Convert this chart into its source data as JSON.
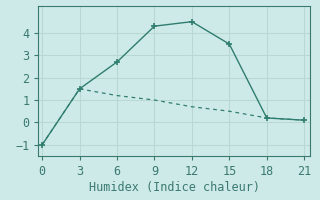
{
  "xlabel": "Humidex (Indice chaleur)",
  "bg_color": "#ceeae8",
  "line_color": "#2e7d6e",
  "grid_color": "#b8d8d5",
  "line1_x": [
    0,
    3,
    6,
    9,
    12,
    15,
    18,
    21
  ],
  "line1_y": [
    -1.0,
    1.5,
    2.7,
    4.3,
    4.5,
    3.5,
    0.2,
    0.1
  ],
  "line2_x": [
    0,
    3,
    6,
    9,
    12,
    15,
    18,
    21
  ],
  "line2_y": [
    -1.0,
    1.5,
    1.2,
    1.0,
    0.7,
    0.5,
    0.2,
    0.1
  ],
  "xlim": [
    -0.3,
    21.5
  ],
  "ylim": [
    -1.5,
    5.2
  ],
  "yticks": [
    -1,
    0,
    1,
    2,
    3,
    4
  ],
  "xticks": [
    0,
    3,
    6,
    9,
    12,
    15,
    18,
    21
  ],
  "tick_fontsize": 8.5,
  "xlabel_fontsize": 8.5,
  "spine_color": "#3a7a6e",
  "tick_color": "#3a7a6e"
}
